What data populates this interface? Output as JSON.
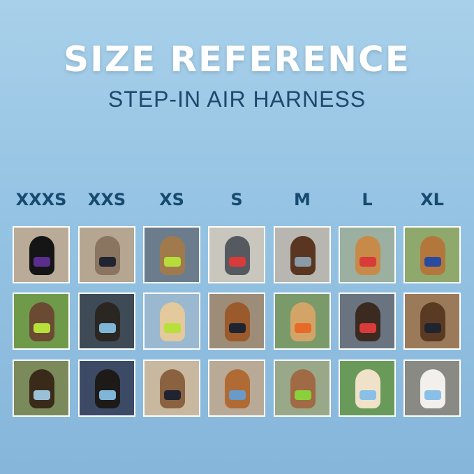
{
  "header": {
    "title": "SIZE REFERENCE",
    "subtitle": "STEP-IN AIR HARNESS"
  },
  "sizes": [
    "XXXS",
    "XXS",
    "XS",
    "S",
    "M",
    "L",
    "XL"
  ],
  "photos": [
    [
      {
        "bg": "#b9ab98",
        "pet": "#151515",
        "harness": "#5b2d8f"
      },
      {
        "bg": "#b4a690",
        "pet": "#8a7560",
        "harness": "#1f2430"
      },
      {
        "bg": "#6b7d8c",
        "pet": "#a07a4c",
        "harness": "#b6dd3a"
      },
      {
        "bg": "#c9c6bd",
        "pet": "#555a60",
        "harness": "#d93a3a"
      },
      {
        "bg": "#b8b6b0",
        "pet": "#5a3520",
        "harness": "#8a9aa6"
      },
      {
        "bg": "#9bb0a0",
        "pet": "#c88a48",
        "harness": "#d93a3a"
      },
      {
        "bg": "#8fa86c",
        "pet": "#b3773c",
        "harness": "#2a4aa0"
      }
    ],
    [
      {
        "bg": "#6f9a4a",
        "pet": "#6b4a34",
        "harness": "#b8e03a"
      },
      {
        "bg": "#3e4a55",
        "pet": "#2a2622",
        "harness": "#7fb6d8"
      },
      {
        "bg": "#9ab8d0",
        "pet": "#e3c99c",
        "harness": "#b8e03a"
      },
      {
        "bg": "#9c8c78",
        "pet": "#9a5a2c",
        "harness": "#1f2430"
      },
      {
        "bg": "#7a9a6a",
        "pet": "#d2a468",
        "harness": "#e86a2a"
      },
      {
        "bg": "#6a7480",
        "pet": "#3a2a20",
        "harness": "#d93a3a"
      },
      {
        "bg": "#9a7a58",
        "pet": "#5a3a22",
        "harness": "#1f2430"
      }
    ],
    [
      {
        "bg": "#7a8a5a",
        "pet": "#3a2a1a",
        "harness": "#9ac0d8"
      },
      {
        "bg": "#3c4a66",
        "pet": "#1d1a18",
        "harness": "#7fb6d8"
      },
      {
        "bg": "#c8b8a0",
        "pet": "#8a6240",
        "harness": "#1f2430"
      },
      {
        "bg": "#b8aa96",
        "pet": "#b06a34",
        "harness": "#6a9ac8"
      },
      {
        "bg": "#9aa88a",
        "pet": "#a06a44",
        "harness": "#8ad03a"
      },
      {
        "bg": "#6a9a5a",
        "pet": "#efe2c8",
        "harness": "#8ac0e8"
      },
      {
        "bg": "#8a8a84",
        "pet": "#f2f0ec",
        "harness": "#8ac0e8"
      }
    ]
  ]
}
